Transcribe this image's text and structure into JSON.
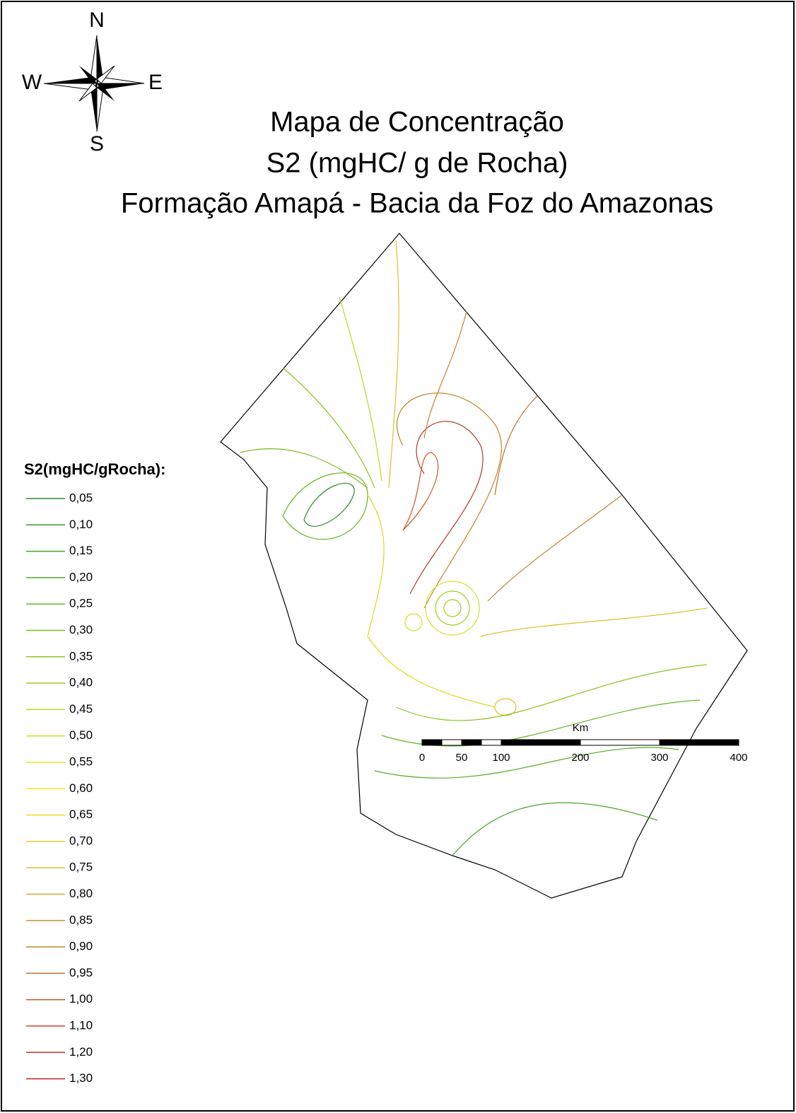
{
  "compass": {
    "n": "N",
    "s": "S",
    "w": "W",
    "e": "E"
  },
  "title": {
    "line1": "Mapa de Concentração",
    "line2": "S2 (mgHC/ g de Rocha)",
    "line3": "Formação Amapá - Bacia da Foz do Amazonas"
  },
  "legend": {
    "title": "S2(mgHC/gRocha):",
    "items": [
      {
        "label": "0,05",
        "color": "#2e8b2e"
      },
      {
        "label": "0,10",
        "color": "#3a9a2a"
      },
      {
        "label": "0,15",
        "color": "#47a426"
      },
      {
        "label": "0,20",
        "color": "#55ac24"
      },
      {
        "label": "0,25",
        "color": "#66b422"
      },
      {
        "label": "0,30",
        "color": "#78bc20"
      },
      {
        "label": "0,35",
        "color": "#8cc41e"
      },
      {
        "label": "0,40",
        "color": "#a2cc1c"
      },
      {
        "label": "0,45",
        "color": "#bad61a"
      },
      {
        "label": "0,50",
        "color": "#d2e018"
      },
      {
        "label": "0,55",
        "color": "#e6e816"
      },
      {
        "label": "0,60",
        "color": "#f2ee14"
      },
      {
        "label": "0,65",
        "color": "#ecdf20"
      },
      {
        "label": "0,70",
        "color": "#e4d028"
      },
      {
        "label": "0,75",
        "color": "#dcc02c"
      },
      {
        "label": "0,80",
        "color": "#d2ad2e"
      },
      {
        "label": "0,85",
        "color": "#c89a2e"
      },
      {
        "label": "0,90",
        "color": "#c0862c"
      },
      {
        "label": "0,95",
        "color": "#ba722a"
      },
      {
        "label": "1,00",
        "color": "#c85a28"
      },
      {
        "label": "1,10",
        "color": "#cc4626"
      },
      {
        "label": "1,20",
        "color": "#c83022"
      },
      {
        "label": "1,30",
        "color": "#c01e1e"
      }
    ]
  },
  "scale": {
    "unit": "Km",
    "ticks": [
      0,
      50,
      100,
      200,
      300,
      400
    ]
  }
}
